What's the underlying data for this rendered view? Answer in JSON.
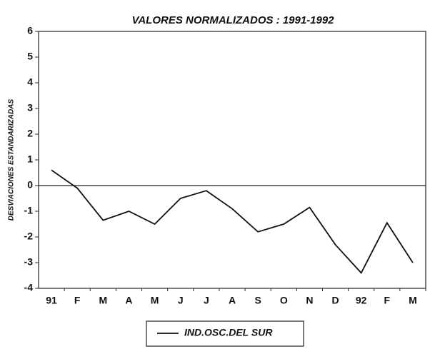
{
  "chart_data": {
    "type": "line",
    "title": "VALORES NORMALIZADOS : 1991-1992",
    "y_label": "DESVIACIONES ESTANDARIZADAS",
    "categories": [
      "91",
      "F",
      "M",
      "A",
      "M",
      "J",
      "J",
      "A",
      "S",
      "O",
      "N",
      "D",
      "92",
      "F",
      "M"
    ],
    "series": [
      {
        "name": "IND.OSC.DEL SUR",
        "color": "#111111",
        "values": [
          0.6,
          -0.1,
          -1.35,
          -1.0,
          -1.5,
          -0.5,
          -0.2,
          -0.9,
          -1.8,
          -1.5,
          -0.85,
          -2.3,
          -3.4,
          -1.45,
          -3.0
        ]
      }
    ],
    "ylim": [
      -4,
      6
    ],
    "yticks": [
      -4,
      -3,
      -2,
      -1,
      0,
      1,
      2,
      3,
      4,
      5,
      6
    ],
    "reference_line": 0,
    "grid": false,
    "legend": "bottom"
  }
}
